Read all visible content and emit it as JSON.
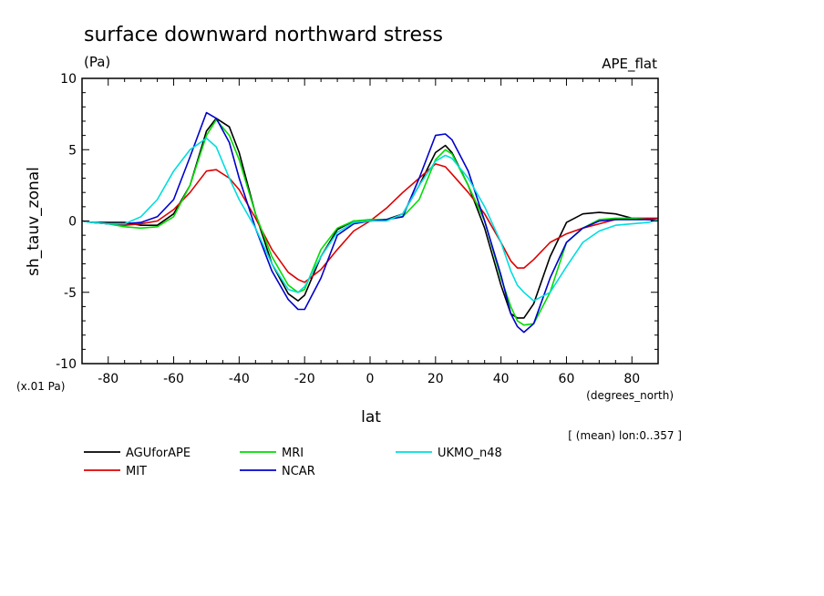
{
  "chart_data": {
    "type": "line",
    "title": "surface downward northward stress",
    "units": "(Pa)",
    "experiment": "APE_flat",
    "xlabel": "lat",
    "xunits": "(degrees_north)",
    "ylabel": "sh_tauv_zonal",
    "yscale_note": "(x.01 Pa)",
    "footnote": "[ (mean) lon:0..357 ]",
    "xlim": [
      -88,
      88
    ],
    "ylim": [
      -10,
      10
    ],
    "xticks": [
      -80,
      -60,
      -40,
      -20,
      0,
      20,
      40,
      60,
      80
    ],
    "yticks": [
      -10,
      -5,
      0,
      5,
      10
    ],
    "xtick_labels": [
      "-80",
      "-60",
      "-40",
      "-20",
      "0",
      "20",
      "40",
      "60",
      "80"
    ],
    "ytick_labels": [
      "-10",
      "-5",
      "0",
      "5",
      "10"
    ],
    "legend_placement": "bottom",
    "grid": false,
    "series": [
      {
        "name": "AGUforAPE",
        "color": "#000000",
        "x": [
          -88,
          -85,
          -80,
          -75,
          -70,
          -65,
          -60,
          -55,
          -50,
          -47,
          -43,
          -40,
          -35,
          -30,
          -25,
          -22,
          -20,
          -15,
          -10,
          -5,
          0,
          5,
          10,
          15,
          20,
          23,
          25,
          30,
          35,
          40,
          43,
          45,
          47,
          50,
          55,
          60,
          65,
          70,
          75,
          80,
          85,
          88
        ],
        "y": [
          0,
          -0.1,
          -0.1,
          -0.1,
          -0.3,
          -0.3,
          0.5,
          2.5,
          6.3,
          7.2,
          6.6,
          4.8,
          0.5,
          -3,
          -5.1,
          -5.6,
          -5.2,
          -2.5,
          -0.6,
          0,
          0,
          0.1,
          0.5,
          2.5,
          4.8,
          5.3,
          4.8,
          2.5,
          -0.5,
          -4.5,
          -6.5,
          -6.8,
          -6.8,
          -5.8,
          -2.5,
          -0.1,
          0.5,
          0.6,
          0.5,
          0.2,
          0.1,
          0.1
        ]
      },
      {
        "name": "MIT",
        "color": "#dd0000",
        "x": [
          -88,
          -85,
          -80,
          -75,
          -70,
          -65,
          -60,
          -55,
          -50,
          -47,
          -43,
          -40,
          -35,
          -30,
          -25,
          -22,
          -20,
          -15,
          -10,
          -5,
          0,
          5,
          10,
          15,
          20,
          23,
          25,
          30,
          35,
          40,
          43,
          45,
          47,
          50,
          55,
          60,
          65,
          70,
          75,
          80,
          85,
          88
        ],
        "y": [
          0,
          -0.1,
          -0.2,
          -0.3,
          -0.2,
          0,
          0.8,
          2,
          3.5,
          3.6,
          3,
          2.2,
          0.2,
          -2,
          -3.6,
          -4.1,
          -4.3,
          -3.4,
          -2,
          -0.7,
          0,
          0.9,
          2,
          3,
          4,
          3.8,
          3.3,
          2,
          0.5,
          -1.5,
          -2.8,
          -3.3,
          -3.3,
          -2.7,
          -1.5,
          -0.9,
          -0.5,
          -0.2,
          0.1,
          0.2,
          0.2,
          0.2
        ]
      },
      {
        "name": "MRI",
        "color": "#00dd00",
        "x": [
          -88,
          -85,
          -80,
          -75,
          -70,
          -65,
          -60,
          -55,
          -50,
          -47,
          -43,
          -40,
          -35,
          -30,
          -25,
          -22,
          -20,
          -15,
          -10,
          -5,
          0,
          5,
          10,
          15,
          20,
          23,
          25,
          30,
          35,
          40,
          43,
          45,
          47,
          50,
          55,
          60,
          65,
          70,
          75,
          80,
          85,
          88
        ],
        "y": [
          0,
          -0.1,
          -0.2,
          -0.4,
          -0.5,
          -0.4,
          0.3,
          2.5,
          6,
          7.1,
          6,
          4.3,
          0.5,
          -2.5,
          -4.5,
          -5,
          -4.8,
          -2,
          -0.5,
          0,
          0.1,
          0.1,
          0.3,
          1.5,
          4.3,
          5,
          4.7,
          2.5,
          0,
          -4,
          -6,
          -7,
          -7.3,
          -7.2,
          -5,
          -1.5,
          -0.5,
          0.1,
          0.2,
          0.2,
          0.1,
          0.1
        ]
      },
      {
        "name": "NCAR",
        "color": "#0000cc",
        "x": [
          -88,
          -85,
          -80,
          -75,
          -70,
          -65,
          -60,
          -55,
          -50,
          -47,
          -43,
          -40,
          -35,
          -30,
          -25,
          -22,
          -20,
          -15,
          -10,
          -5,
          0,
          5,
          10,
          15,
          20,
          23,
          25,
          30,
          35,
          40,
          43,
          45,
          47,
          50,
          55,
          60,
          65,
          70,
          75,
          80,
          85,
          88
        ],
        "y": [
          0,
          -0.1,
          -0.2,
          -0.2,
          -0.1,
          0.3,
          1.5,
          4.5,
          7.6,
          7.2,
          5.5,
          3,
          -0.5,
          -3.5,
          -5.5,
          -6.2,
          -6.2,
          -4,
          -1,
          -0.2,
          0,
          0.1,
          0.3,
          3,
          6,
          6.1,
          5.7,
          3.5,
          0,
          -3.8,
          -6.5,
          -7.4,
          -7.8,
          -7.2,
          -4,
          -1.5,
          -0.5,
          0,
          0.1,
          0.1,
          0.1,
          0.1
        ]
      },
      {
        "name": "UKMO_n48",
        "color": "#00dddd",
        "x": [
          -88,
          -85,
          -80,
          -75,
          -70,
          -65,
          -60,
          -55,
          -50,
          -47,
          -43,
          -40,
          -35,
          -30,
          -25,
          -22,
          -20,
          -15,
          -10,
          -5,
          0,
          5,
          10,
          15,
          20,
          23,
          25,
          30,
          35,
          40,
          43,
          45,
          47,
          50,
          55,
          60,
          65,
          70,
          75,
          80,
          85,
          88
        ],
        "y": [
          0,
          -0.1,
          -0.2,
          -0.2,
          0.3,
          1.5,
          3.5,
          5,
          5.8,
          5.2,
          3,
          1.5,
          -0.5,
          -3,
          -4.8,
          -5,
          -4.6,
          -2.5,
          -0.8,
          -0.1,
          0,
          0,
          0.5,
          2.5,
          4.2,
          4.6,
          4.4,
          3,
          1,
          -1.5,
          -3.5,
          -4.5,
          -5,
          -5.6,
          -5,
          -3.2,
          -1.5,
          -0.7,
          -0.3,
          -0.2,
          -0.1,
          0.1
        ]
      }
    ]
  }
}
